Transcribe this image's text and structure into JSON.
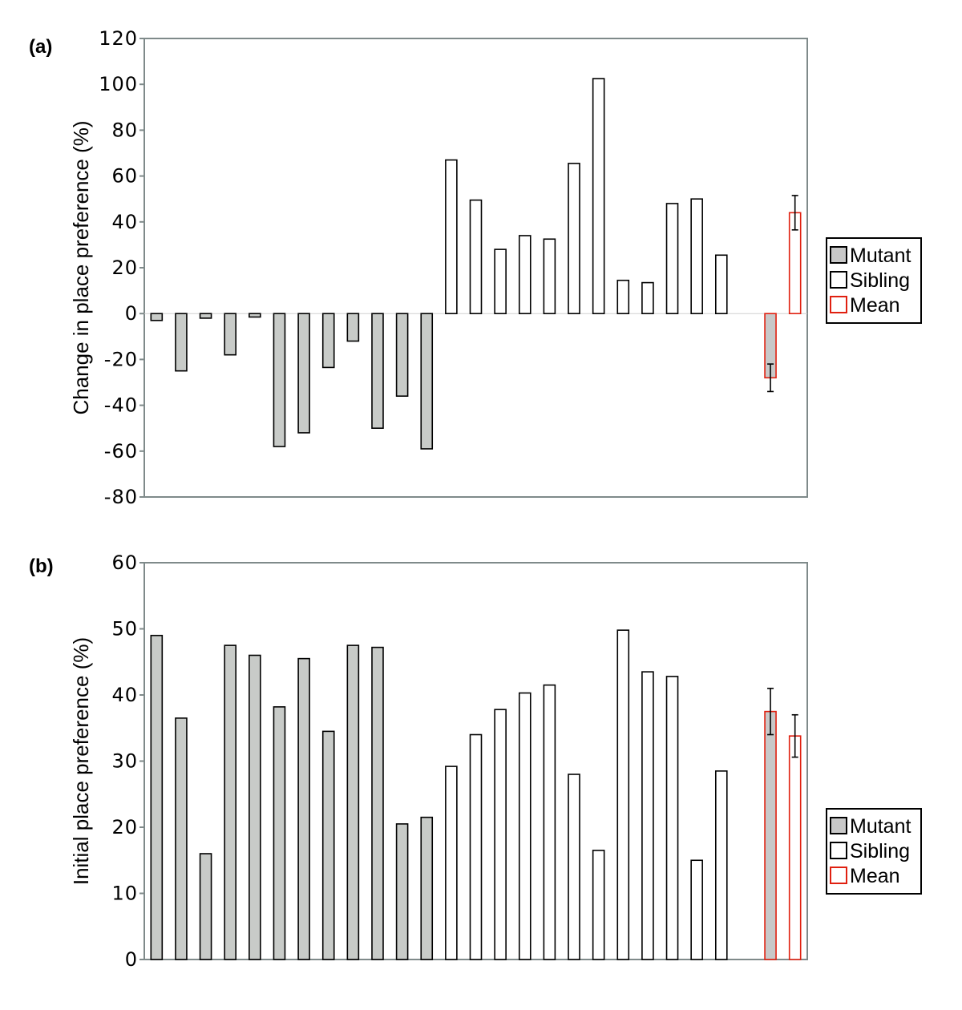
{
  "chart_data": [
    {
      "type": "bar",
      "panel_label": "(a)",
      "ylabel": "Change in place preference (%)",
      "ylim": [
        -80,
        120
      ],
      "yticks": [
        -80,
        -60,
        -40,
        -20,
        0,
        20,
        40,
        60,
        80,
        100,
        120
      ],
      "grid": false,
      "legend_position": "right",
      "legend": [
        {
          "label": "Mutant",
          "fill": "#c8c8c8",
          "stroke": "#000000"
        },
        {
          "label": "Sibling",
          "fill": "#ffffff",
          "stroke": "#000000"
        },
        {
          "label": "Mean",
          "fill": "#ffffff",
          "stroke": "#e02010"
        }
      ],
      "series": [
        {
          "group": "Mutant",
          "values": [
            -3,
            -25,
            -2,
            -18,
            -1.5,
            -58,
            -52,
            -23.5,
            -12,
            -50,
            -36,
            -59
          ]
        },
        {
          "group": "Sibling",
          "values": [
            67,
            49.5,
            28,
            34,
            32.5,
            65.5,
            102.5,
            14.5,
            13.5,
            48,
            50,
            25.5
          ]
        },
        {
          "group": "Mean",
          "values": [
            -28,
            44
          ],
          "errors": [
            6,
            7.5
          ],
          "fills": [
            "#c8c8c8",
            "#ffffff"
          ]
        }
      ]
    },
    {
      "type": "bar",
      "panel_label": "(b)",
      "ylabel": "Initial place preference (%)",
      "ylim": [
        0,
        60
      ],
      "yticks": [
        0,
        10,
        20,
        30,
        40,
        50,
        60
      ],
      "grid": false,
      "legend_position": "right",
      "legend": [
        {
          "label": "Mutant",
          "fill": "#c8c8c8",
          "stroke": "#000000"
        },
        {
          "label": "Sibling",
          "fill": "#ffffff",
          "stroke": "#000000"
        },
        {
          "label": "Mean",
          "fill": "#ffffff",
          "stroke": "#e02010"
        }
      ],
      "series": [
        {
          "group": "Mutant",
          "values": [
            49,
            36.5,
            16,
            47.5,
            46,
            38.2,
            45.5,
            34.5,
            47.5,
            47.2,
            20.5,
            21.5
          ]
        },
        {
          "group": "Sibling",
          "values": [
            29.2,
            34,
            37.8,
            40.3,
            41.5,
            28,
            16.5,
            49.8,
            43.5,
            42.8,
            15,
            28.5
          ]
        },
        {
          "group": "Mean",
          "values": [
            37.5,
            33.8
          ],
          "errors": [
            3.5,
            3.2
          ],
          "fills": [
            "#c8c8c8",
            "#ffffff"
          ]
        }
      ]
    }
  ]
}
